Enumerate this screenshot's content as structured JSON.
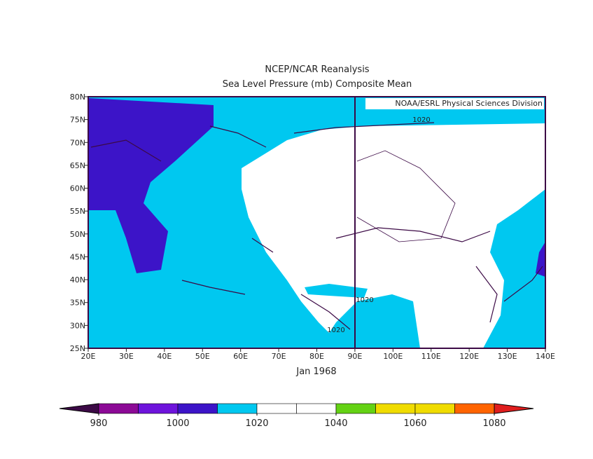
{
  "header": {
    "title": "NCEP/NCAR Reanalysis",
    "subtitle": "Sea Level Pressure (mb) Composite Mean"
  },
  "map": {
    "credit": "NOAA/ESRL Physical Sciences Division",
    "date": "Jan 1968",
    "lonlim": [
      20,
      140
    ],
    "latlim": [
      25,
      80
    ],
    "lonticks": [
      {
        "value": 20,
        "label": "20E"
      },
      {
        "value": 30,
        "label": "30E"
      },
      {
        "value": 40,
        "label": "40E"
      },
      {
        "value": 50,
        "label": "50E"
      },
      {
        "value": 60,
        "label": "60E"
      },
      {
        "value": 70,
        "label": "70E"
      },
      {
        "value": 80,
        "label": "80E"
      },
      {
        "value": 90,
        "label": "90E"
      },
      {
        "value": 100,
        "label": "100E"
      },
      {
        "value": 110,
        "label": "110E"
      },
      {
        "value": 120,
        "label": "120E"
      },
      {
        "value": 130,
        "label": "130E"
      },
      {
        "value": 140,
        "label": "140E"
      }
    ],
    "latticks": [
      {
        "value": 25,
        "label": "25N"
      },
      {
        "value": 30,
        "label": "30N"
      },
      {
        "value": 35,
        "label": "35N"
      },
      {
        "value": 40,
        "label": "40N"
      },
      {
        "value": 45,
        "label": "45N"
      },
      {
        "value": 50,
        "label": "50N"
      },
      {
        "value": 55,
        "label": "55N"
      },
      {
        "value": 60,
        "label": "60N"
      },
      {
        "value": 65,
        "label": "65N"
      },
      {
        "value": 70,
        "label": "70N"
      },
      {
        "value": 75,
        "label": "75N"
      },
      {
        "value": 80,
        "label": "80N"
      }
    ],
    "contour_labels": [
      "1020",
      "1020",
      "1020"
    ]
  },
  "colorbar": {
    "ticks": [
      980,
      1000,
      1020,
      1040,
      1060,
      1080
    ],
    "colors": [
      "#3c0a46",
      "#8c0a96",
      "#6e14dc",
      "#3c14c8",
      "#00c8f0",
      "#ffffff",
      "#ffffff",
      "#64d214",
      "#f0dc00",
      "#f0dc00",
      "#ff6400",
      "#e01e1e"
    ]
  }
}
